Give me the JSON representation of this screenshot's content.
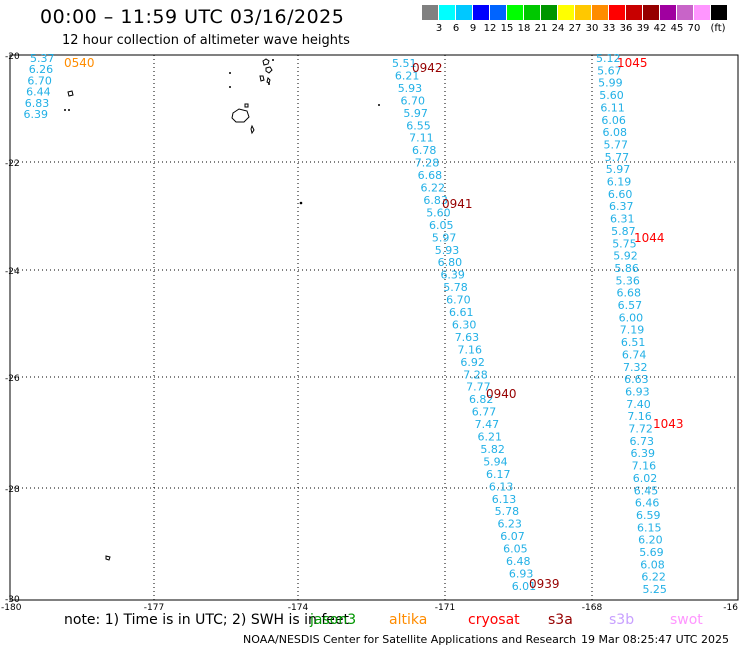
{
  "header": {
    "title": "00:00 – 11:59 UTC 03/16/2025",
    "subtitle": "12 hour collection of altimeter wave heights"
  },
  "color_scale": {
    "unit": "(ft)",
    "colors": [
      "#808080",
      "#00ffff",
      "#00c8ff",
      "#0000ff",
      "#0064ff",
      "#00ff00",
      "#00c800",
      "#009600",
      "#ffff00",
      "#ffc800",
      "#ff8c00",
      "#ff0000",
      "#c80000",
      "#960000",
      "#a000a0",
      "#c864c8",
      "#ff96ff",
      "#000000"
    ],
    "labels": [
      "3",
      "6",
      "9",
      "12",
      "15",
      "18",
      "21",
      "24",
      "27",
      "30",
      "33",
      "36",
      "39",
      "42",
      "45",
      "70"
    ]
  },
  "axes": {
    "y_labels": [
      "-20",
      "-22",
      "-24",
      "-26",
      "-28",
      "-30"
    ],
    "x_labels": [
      "-180",
      "-177",
      "-174",
      "-171",
      "-168",
      "-16"
    ]
  },
  "tracks": [
    {
      "values": [
        "5.37",
        "6.26",
        "6.70",
        "6.44",
        "6.83",
        "6.39"
      ],
      "times": [
        {
          "text": "0540",
          "color": "#ff8c00"
        }
      ]
    },
    {
      "values": [
        "5.51",
        "6.21",
        "5.93",
        "6.70",
        "5.97",
        "6.55",
        "7.11",
        "6.78",
        "7.28",
        "6.68",
        "6.22",
        "6.83",
        "5.60",
        "6.05",
        "5.97",
        "5.93",
        "6.80",
        "6.39",
        "5.78",
        "6.70",
        "6.61",
        "6.30",
        "7.63",
        "7.16",
        "6.92",
        "7.28",
        "7.77",
        "6.82",
        "6.77",
        "7.47",
        "6.21",
        "5.82",
        "5.94",
        "6.17",
        "6.13",
        "6.13",
        "5.78",
        "6.23",
        "6.07",
        "6.05",
        "6.48",
        "6.93",
        "6.01"
      ],
      "times": [
        {
          "text": "0942",
          "color": "#960000"
        },
        {
          "text": "0941",
          "color": "#960000"
        },
        {
          "text": "0940",
          "color": "#960000"
        },
        {
          "text": "0939",
          "color": "#960000"
        }
      ]
    },
    {
      "values": [
        "5.12",
        "5.67",
        "5.99",
        "5.60",
        "6.11",
        "6.06",
        "6.08",
        "5.77",
        "5.77",
        "5.97",
        "6.19",
        "6.60",
        "6.37",
        "6.31",
        "5.87",
        "5.75",
        "5.92",
        "5.86",
        "5.36",
        "6.68",
        "6.57",
        "6.00",
        "7.19",
        "6.51",
        "6.74",
        "7.32",
        "6.63",
        "6.93",
        "7.40",
        "7.16",
        "7.72",
        "6.73",
        "6.39",
        "7.16",
        "6.02",
        "6.45",
        "6.46",
        "6.59",
        "6.15",
        "6.20",
        "5.69",
        "6.08",
        "6.22",
        "5.25"
      ],
      "times": [
        {
          "text": "1045",
          "color": "#ff0000"
        },
        {
          "text": "1044",
          "color": "#ff0000"
        },
        {
          "text": "1043",
          "color": "#ff0000"
        }
      ]
    }
  ],
  "footer": {
    "note": "note:  1) Time is in UTC;  2) SWH is in feet",
    "satellites": [
      {
        "name": "jason3",
        "color": "#009600"
      },
      {
        "name": "altika",
        "color": "#ff8c00"
      },
      {
        "name": "cryosat",
        "color": "#ff0000"
      },
      {
        "name": "s3a",
        "color": "#960000"
      },
      {
        "name": "s3b",
        "color": "#c8a0ff"
      },
      {
        "name": "swot",
        "color": "#ff96ff"
      }
    ],
    "credit": "NOAA/NESDIS Center for Satellite Applications and Research",
    "timestamp": "19 Mar 08:25:47 UTC 2025"
  }
}
